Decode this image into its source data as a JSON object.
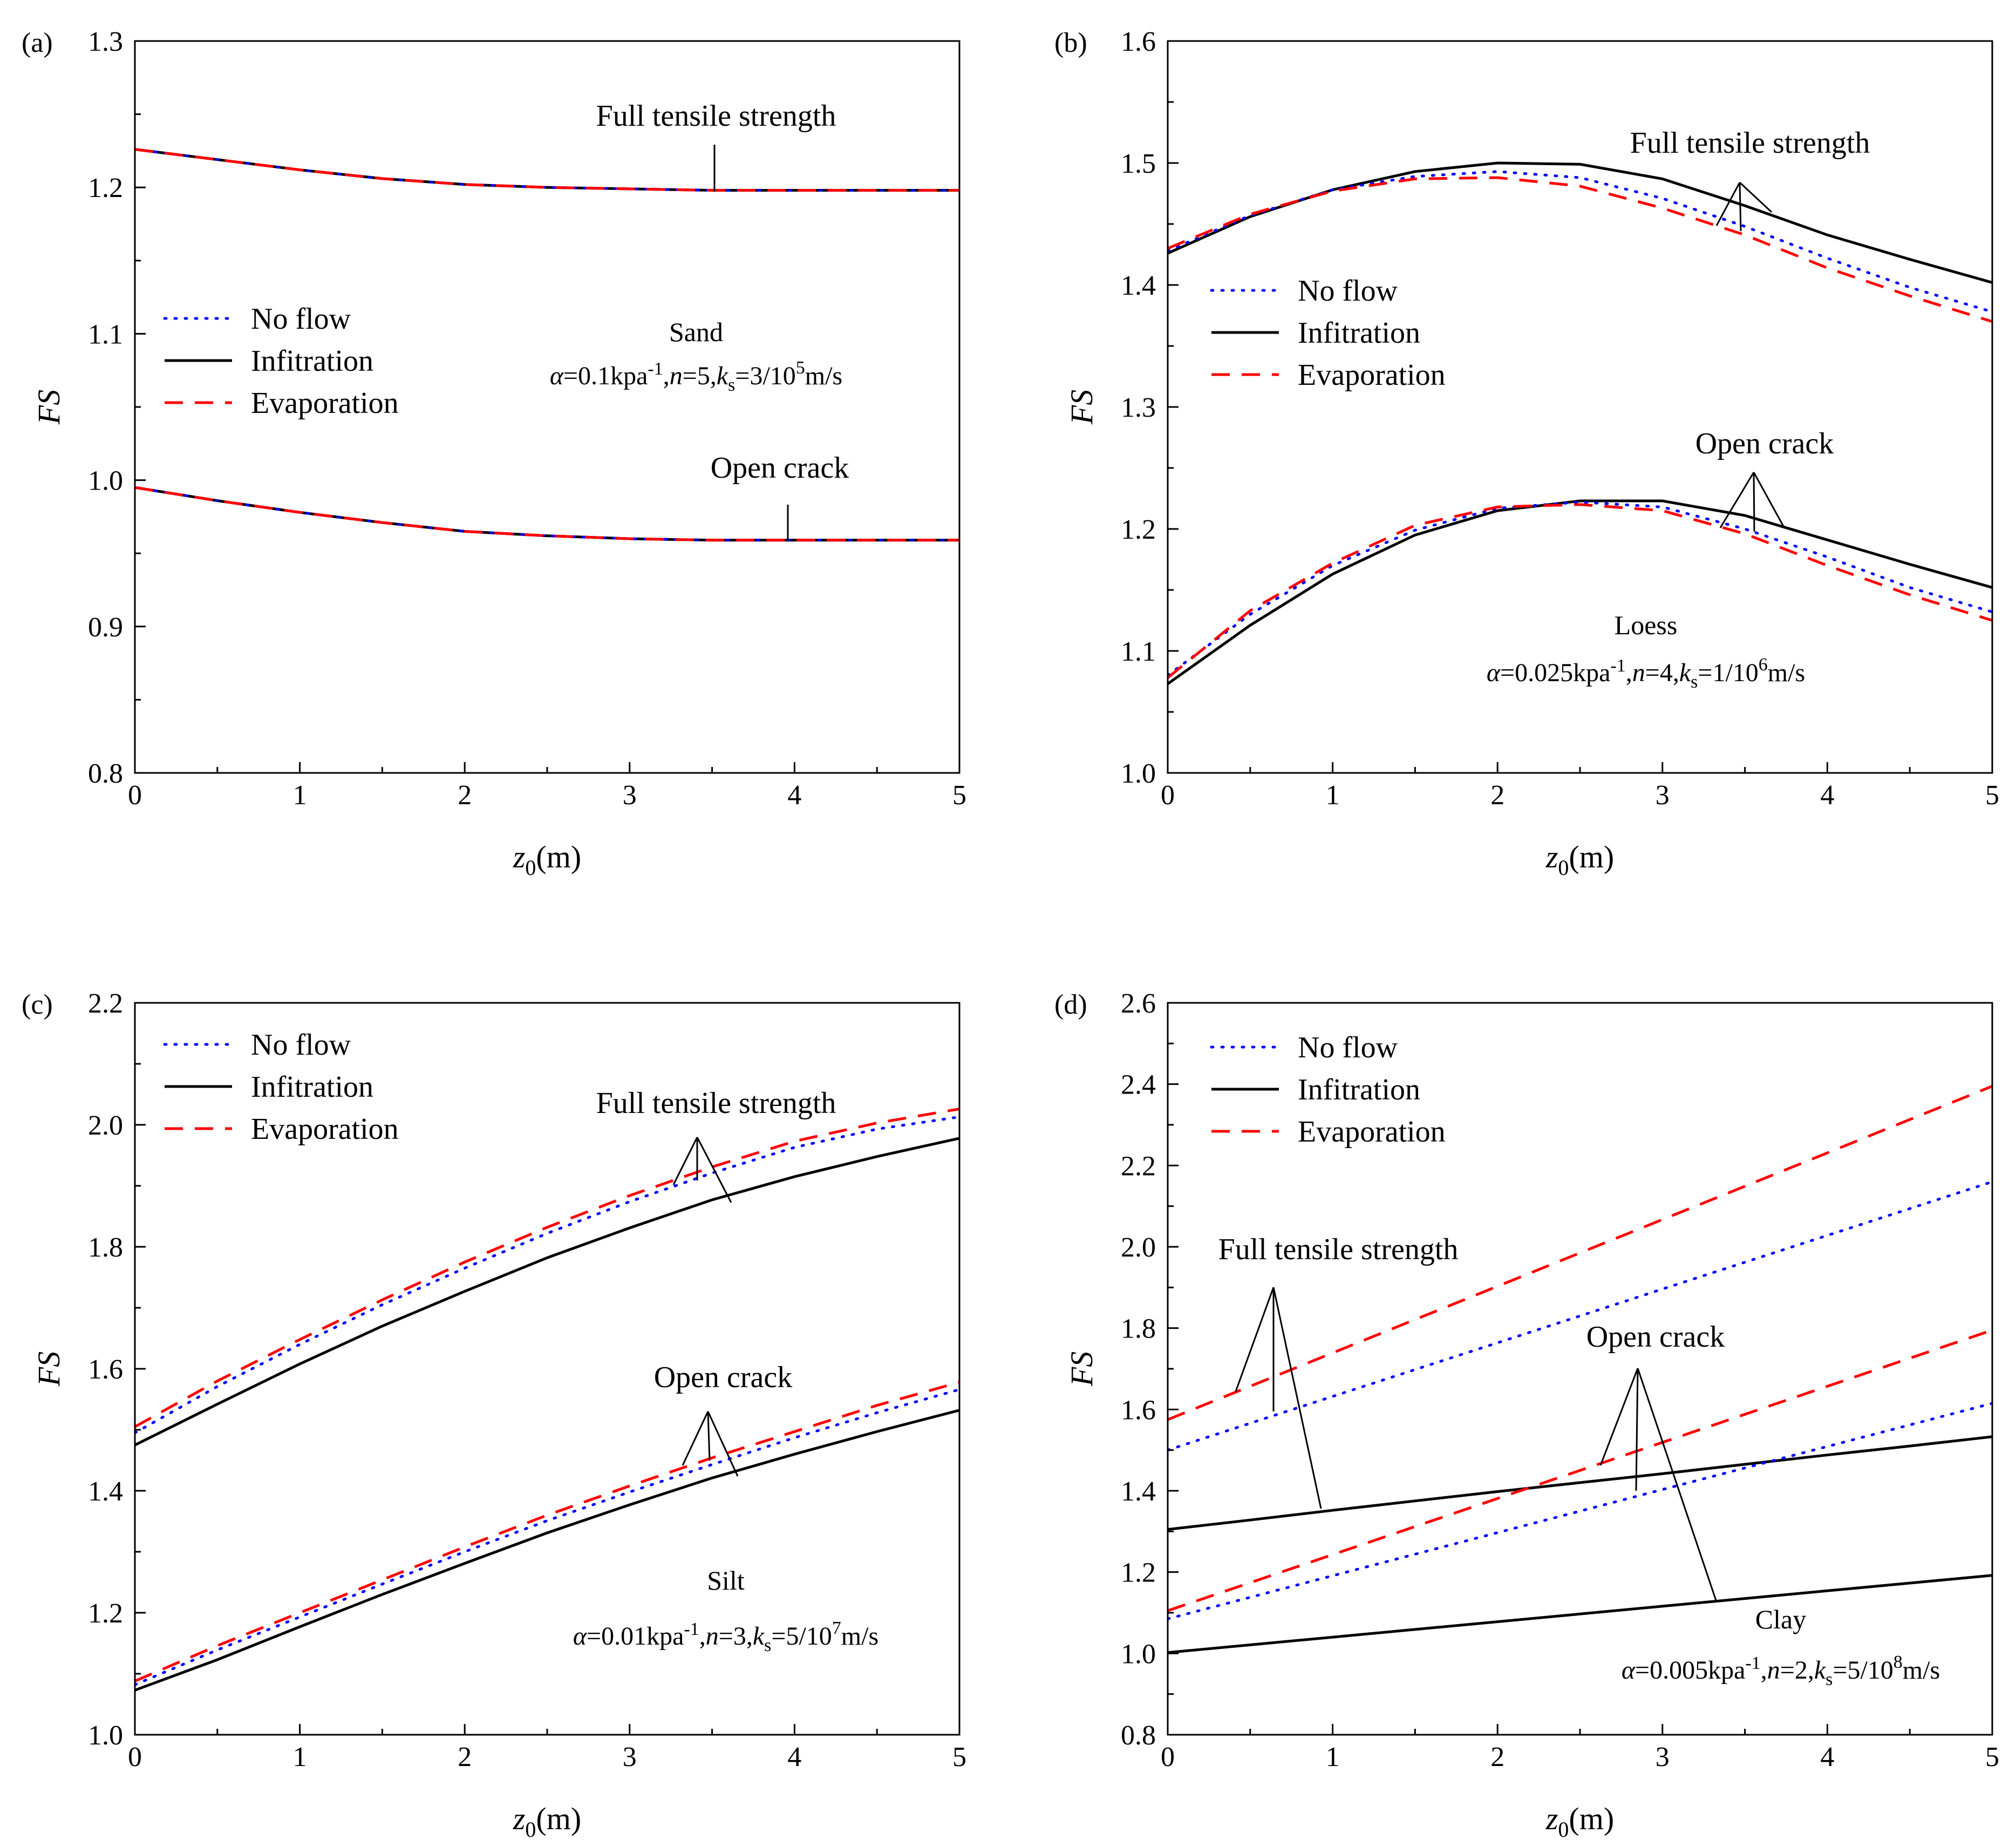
{
  "chart_data": [
    {
      "type": "line",
      "panel_tag": "(a)",
      "xlabel": "z0(m)",
      "ylabel": "FS",
      "xlim": [
        0,
        5
      ],
      "ylim": [
        0.8,
        1.3
      ],
      "xticks": [
        0,
        1,
        2,
        3,
        4,
        5
      ],
      "yticks": [
        0.8,
        0.9,
        1.0,
        1.1,
        1.2,
        1.3
      ],
      "ytick_labels": [
        "0.8",
        "0.9",
        "1.0",
        "1.1",
        "1.2",
        "1.3"
      ],
      "x": [
        0,
        0.5,
        1,
        1.5,
        2,
        2.5,
        3,
        3.5,
        4,
        4.5,
        5
      ],
      "legend": [
        "No flow",
        "Infitration",
        "Evaporation"
      ],
      "legend_position": "upper-left",
      "soil": "Sand",
      "params": "α=0.1kpa-1,n=5,ks=3/105m/s",
      "annotations": [
        {
          "text": "Full tensile strength",
          "target": {
            "x": 3.52,
            "y": 1.199
          }
        },
        {
          "text": "Open crack",
          "target": {
            "x": 3.95,
            "y": 0.959
          }
        }
      ],
      "series": [
        {
          "name": "No flow",
          "group": "Full tensile strength",
          "values": [
            1.226,
            1.219,
            1.212,
            1.206,
            1.202,
            1.2,
            1.199,
            1.198,
            1.198,
            1.198,
            1.198
          ]
        },
        {
          "name": "Infitration",
          "group": "Full tensile strength",
          "values": [
            1.226,
            1.219,
            1.212,
            1.206,
            1.202,
            1.2,
            1.199,
            1.198,
            1.198,
            1.198,
            1.198
          ]
        },
        {
          "name": "Evaporation",
          "group": "Full tensile strength",
          "values": [
            1.226,
            1.219,
            1.212,
            1.206,
            1.202,
            1.2,
            1.199,
            1.198,
            1.198,
            1.198,
            1.198
          ]
        },
        {
          "name": "No flow",
          "group": "Open crack",
          "values": [
            0.995,
            0.986,
            0.978,
            0.971,
            0.965,
            0.962,
            0.96,
            0.959,
            0.959,
            0.959,
            0.959
          ]
        },
        {
          "name": "Infitration",
          "group": "Open crack",
          "values": [
            0.995,
            0.986,
            0.978,
            0.971,
            0.965,
            0.962,
            0.96,
            0.959,
            0.959,
            0.959,
            0.959
          ]
        },
        {
          "name": "Evaporation",
          "group": "Open crack",
          "values": [
            0.995,
            0.986,
            0.978,
            0.971,
            0.965,
            0.962,
            0.96,
            0.959,
            0.959,
            0.959,
            0.959
          ]
        }
      ]
    },
    {
      "type": "line",
      "panel_tag": "(b)",
      "xlabel": "z0(m)",
      "ylabel": "FS",
      "xlim": [
        0,
        5
      ],
      "ylim": [
        1.0,
        1.6
      ],
      "xticks": [
        0,
        1,
        2,
        3,
        4,
        5
      ],
      "yticks": [
        1.0,
        1.1,
        1.2,
        1.3,
        1.4,
        1.5,
        1.6
      ],
      "ytick_labels": [
        "1.0",
        "1.1",
        "1.2",
        "1.3",
        "1.4",
        "1.5",
        "1.6"
      ],
      "x": [
        0,
        0.5,
        1,
        1.5,
        2,
        2.5,
        3,
        3.5,
        4,
        4.5,
        5
      ],
      "legend": [
        "No flow",
        "Infitration",
        "Evaporation"
      ],
      "legend_position": "upper-left",
      "soil": "Loess",
      "params": "α=0.025kpa-1,n=4,ks=1/106m/s",
      "annotations": [
        {
          "text": "Full tensile strength",
          "targets": [
            {
              "x": 3.35,
              "y": 1.445
            },
            {
              "x": 3.5,
              "y": 1.452
            },
            {
              "x": 3.65,
              "y": 1.46
            }
          ]
        },
        {
          "text": "Open crack",
          "targets": [
            {
              "x": 3.35,
              "y": 1.2
            },
            {
              "x": 3.55,
              "y": 1.2
            },
            {
              "x": 3.7,
              "y": 1.2
            }
          ]
        }
      ],
      "series": [
        {
          "name": "No flow",
          "group": "Full tensile strength",
          "values": [
            1.428,
            1.457,
            1.478,
            1.489,
            1.493,
            1.488,
            1.471,
            1.448,
            1.422,
            1.398,
            1.378
          ]
        },
        {
          "name": "Infitration",
          "group": "Full tensile strength",
          "values": [
            1.426,
            1.456,
            1.478,
            1.493,
            1.5,
            1.499,
            1.487,
            1.465,
            1.441,
            1.421,
            1.402
          ]
        },
        {
          "name": "Evaporation",
          "group": "Full tensile strength",
          "values": [
            1.43,
            1.458,
            1.477,
            1.487,
            1.488,
            1.481,
            1.463,
            1.441,
            1.414,
            1.391,
            1.37
          ]
        },
        {
          "name": "No flow",
          "group": "Open crack",
          "values": [
            1.08,
            1.13,
            1.17,
            1.199,
            1.217,
            1.222,
            1.218,
            1.2,
            1.177,
            1.152,
            1.132
          ]
        },
        {
          "name": "Infitration",
          "group": "Open crack",
          "values": [
            1.073,
            1.121,
            1.163,
            1.195,
            1.215,
            1.223,
            1.223,
            1.211,
            1.191,
            1.171,
            1.152
          ]
        },
        {
          "name": "Evaporation",
          "group": "Open crack",
          "values": [
            1.078,
            1.133,
            1.172,
            1.203,
            1.218,
            1.22,
            1.215,
            1.196,
            1.17,
            1.146,
            1.125
          ]
        }
      ]
    },
    {
      "type": "line",
      "panel_tag": "(c)",
      "xlabel": "z0(m)",
      "ylabel": "FS",
      "xlim": [
        0,
        5
      ],
      "ylim": [
        1.0,
        2.2
      ],
      "xticks": [
        0,
        1,
        2,
        3,
        4,
        5
      ],
      "yticks": [
        1.0,
        1.2,
        1.4,
        1.6,
        1.8,
        2.0,
        2.2
      ],
      "ytick_labels": [
        "1.0",
        "1.2",
        "1.4",
        "1.6",
        "1.8",
        "2.0",
        "2.2"
      ],
      "x": [
        0,
        0.5,
        1,
        1.5,
        2,
        2.5,
        3,
        3.5,
        4,
        4.5,
        5
      ],
      "legend": [
        "No flow",
        "Infitration",
        "Evaporation"
      ],
      "legend_position": "upper-left",
      "soil": "Silt",
      "params": "α=0.01kpa-1,n=3,ks=5/107m/s",
      "annotations": [
        {
          "text": "Full tensile strength",
          "targets": [
            {
              "x": 3.28,
              "y": 1.895
            },
            {
              "x": 3.42,
              "y": 1.905
            },
            {
              "x": 3.62,
              "y": 1.865
            }
          ]
        },
        {
          "text": "Open crack",
          "targets": [
            {
              "x": 3.28,
              "y": 1.435
            },
            {
              "x": 3.45,
              "y": 1.44
            },
            {
              "x": 3.65,
              "y": 1.43
            }
          ]
        }
      ],
      "series": [
        {
          "name": "No flow",
          "group": "Full tensile strength",
          "values": [
            1.495,
            1.571,
            1.64,
            1.705,
            1.765,
            1.822,
            1.874,
            1.921,
            1.963,
            1.993,
            2.013
          ]
        },
        {
          "name": "Infitration",
          "group": "Full tensile strength",
          "values": [
            1.475,
            1.542,
            1.608,
            1.67,
            1.727,
            1.782,
            1.831,
            1.877,
            1.915,
            1.948,
            1.978
          ]
        },
        {
          "name": "Evaporation",
          "group": "Full tensile strength",
          "values": [
            1.505,
            1.58,
            1.648,
            1.713,
            1.775,
            1.832,
            1.884,
            1.931,
            1.973,
            2.003,
            2.026
          ]
        },
        {
          "name": "No flow",
          "group": "Open crack",
          "values": [
            1.082,
            1.139,
            1.193,
            1.247,
            1.3,
            1.351,
            1.398,
            1.443,
            1.487,
            1.528,
            1.566
          ]
        },
        {
          "name": "Infitration",
          "group": "Open crack",
          "values": [
            1.073,
            1.123,
            1.177,
            1.23,
            1.281,
            1.331,
            1.377,
            1.421,
            1.46,
            1.497,
            1.532
          ]
        },
        {
          "name": "Evaporation",
          "group": "Open crack",
          "values": [
            1.088,
            1.146,
            1.2,
            1.254,
            1.308,
            1.36,
            1.408,
            1.454,
            1.497,
            1.54,
            1.578
          ]
        }
      ]
    },
    {
      "type": "line",
      "panel_tag": "(d)",
      "xlabel": "z0(m)",
      "ylabel": "FS",
      "xlim": [
        0,
        5
      ],
      "ylim": [
        0.8,
        2.6
      ],
      "xticks": [
        0,
        1,
        2,
        3,
        4,
        5
      ],
      "yticks": [
        0.8,
        1.0,
        1.2,
        1.4,
        1.6,
        1.8,
        2.0,
        2.2,
        2.4,
        2.6
      ],
      "ytick_labels": [
        "0.8",
        "1.0",
        "1.2",
        "1.4",
        "1.6",
        "1.8",
        "2.0",
        "2.2",
        "2.4",
        "2.6"
      ],
      "x": [
        0,
        0.5,
        1,
        1.5,
        2,
        2.5,
        3,
        3.5,
        4,
        4.5,
        5
      ],
      "legend": [
        "No flow",
        "Infitration",
        "Evaporation"
      ],
      "legend_position": "upper-left",
      "soil": "Clay",
      "params": "α=0.005kpa-1,n=2,ks=5/108m/s",
      "annotations": [
        {
          "text": "Full tensile strength",
          "targets": [
            {
              "x": 0.4,
              "y": 1.64
            },
            {
              "x": 0.64,
              "y": 1.6
            },
            {
              "x": 0.92,
              "y": 1.355
            }
          ]
        },
        {
          "text": "Open crack",
          "targets": [
            {
              "x": 2.6,
              "y": 1.475
            },
            {
              "x": 2.82,
              "y": 1.4
            },
            {
              "x": 3.32,
              "y": 1.13
            }
          ]
        }
      ],
      "series": [
        {
          "name": "No flow",
          "group": "Full tensile strength",
          "values": [
            1.5,
            1.566,
            1.632,
            1.698,
            1.764,
            1.83,
            1.896,
            1.962,
            2.028,
            2.094,
            2.16
          ]
        },
        {
          "name": "Infitration",
          "group": "Full tensile strength",
          "values": [
            1.305,
            1.328,
            1.352,
            1.375,
            1.398,
            1.42,
            1.442,
            1.465,
            1.488,
            1.51,
            1.533
          ]
        },
        {
          "name": "Evaporation",
          "group": "Full tensile strength",
          "values": [
            1.575,
            1.657,
            1.739,
            1.821,
            1.903,
            1.985,
            2.067,
            2.149,
            2.231,
            2.313,
            2.395
          ]
        },
        {
          "name": "No flow",
          "group": "Open crack",
          "values": [
            1.085,
            1.138,
            1.191,
            1.244,
            1.297,
            1.35,
            1.403,
            1.456,
            1.509,
            1.562,
            1.615
          ]
        },
        {
          "name": "Infitration",
          "group": "Open crack",
          "values": [
            1.002,
            1.021,
            1.04,
            1.059,
            1.078,
            1.097,
            1.116,
            1.135,
            1.154,
            1.173,
            1.192
          ]
        },
        {
          "name": "Evaporation",
          "group": "Open crack",
          "values": [
            1.105,
            1.174,
            1.243,
            1.312,
            1.381,
            1.45,
            1.519,
            1.588,
            1.657,
            1.726,
            1.795
          ]
        }
      ]
    }
  ],
  "styles": {
    "No flow": {
      "color": "#0000ff",
      "dash": "dotted"
    },
    "Infitration": {
      "color": "#000000",
      "dash": "solid"
    },
    "Evaporation": {
      "color": "#ff0000",
      "dash": "dashed"
    }
  }
}
